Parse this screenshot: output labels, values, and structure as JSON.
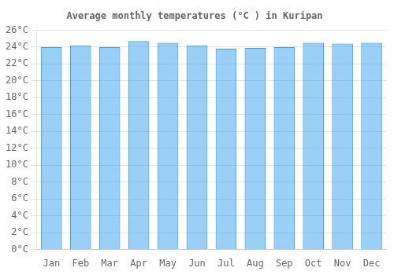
{
  "chart_data": {
    "type": "bar",
    "title": "Average monthly temperatures (°C ) in Kuripan",
    "categories": [
      "Jan",
      "Feb",
      "Mar",
      "Apr",
      "May",
      "Jun",
      "Jul",
      "Aug",
      "Sep",
      "Oct",
      "Nov",
      "Dec"
    ],
    "values": [
      24.0,
      24.2,
      24.0,
      24.7,
      24.5,
      24.2,
      23.8,
      23.9,
      24.0,
      24.5,
      24.4,
      24.5
    ],
    "ylim": [
      0,
      26
    ],
    "yticks": [
      {
        "value": 0,
        "label": "0°C"
      },
      {
        "value": 2,
        "label": "2°C"
      },
      {
        "value": 4,
        "label": "4°C"
      },
      {
        "value": 6,
        "label": "6°C"
      },
      {
        "value": 8,
        "label": "8°C"
      },
      {
        "value": 10,
        "label": "10°C"
      },
      {
        "value": 12,
        "label": "12°C"
      },
      {
        "value": 14,
        "label": "14°C"
      },
      {
        "value": 16,
        "label": "16°C"
      },
      {
        "value": 18,
        "label": "18°C"
      },
      {
        "value": 20,
        "label": "20°C"
      },
      {
        "value": 22,
        "label": "22°C"
      },
      {
        "value": 24,
        "label": "24°C"
      },
      {
        "value": 26,
        "label": "26°C"
      }
    ],
    "grid": true
  }
}
